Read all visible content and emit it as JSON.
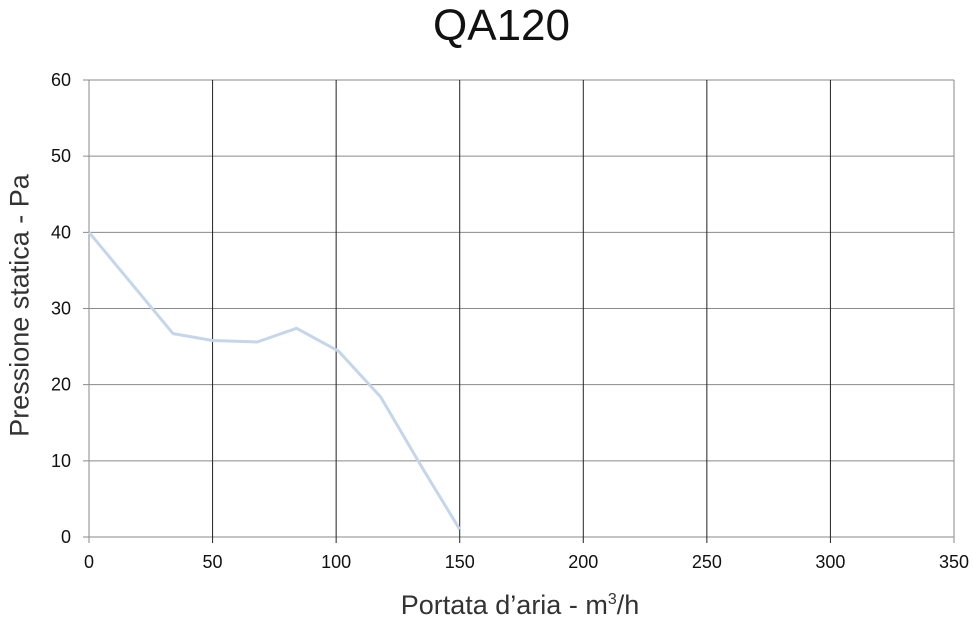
{
  "chart_data": {
    "type": "line",
    "title": "QA120",
    "xlabel": "Portata d'aria - m³/h",
    "xlabel_base": "Portata d’aria - m",
    "xlabel_sup": "3",
    "xlabel_tail": "/h",
    "ylabel": "Pressione statica - Pa",
    "xlim": [
      0,
      350
    ],
    "ylim": [
      0,
      60
    ],
    "xticks": [
      0,
      50,
      100,
      150,
      200,
      250,
      300,
      350
    ],
    "yticks": [
      0,
      10,
      20,
      30,
      40,
      50,
      60
    ],
    "grid": true,
    "legend": null,
    "series": [
      {
        "name": "QA120",
        "color": "#c5d6ea",
        "x": [
          0,
          34,
          50,
          68,
          84,
          101,
          118,
          135,
          150
        ],
        "y": [
          40,
          26.7,
          25.8,
          25.6,
          27.4,
          24.4,
          18.4,
          9,
          1
        ]
      }
    ]
  }
}
